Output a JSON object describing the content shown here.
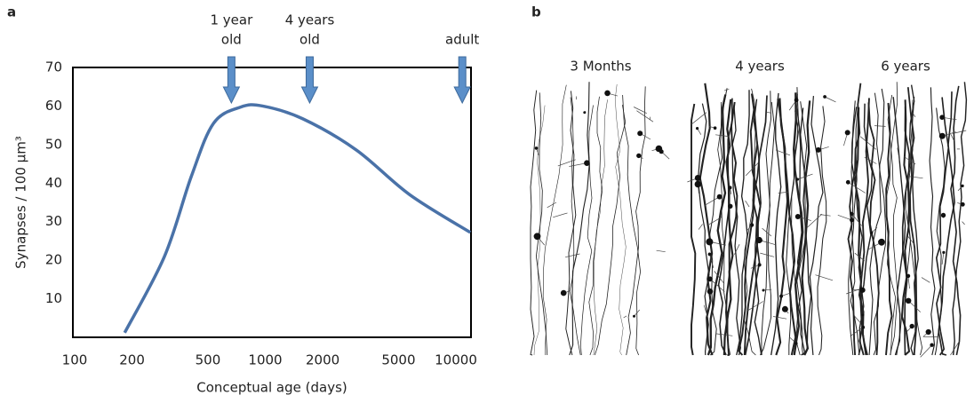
{
  "panel_labels": [
    "a",
    "b"
  ],
  "chart_data": {
    "type": "line",
    "xlabel": "Conceptual age (days)",
    "ylabel": "Synapses / 100 µm³",
    "x": [
      183,
      296,
      409,
      535,
      740,
      968,
      1570,
      3000,
      5720,
      11900
    ],
    "series": [
      {
        "color": "#4a72a8",
        "values": [
          1.2,
          21,
          41.7,
          55.5,
          59.7,
          60,
          56.7,
          48.6,
          37,
          27.2
        ]
      }
    ],
    "xscale": "log",
    "xlim": [
      100,
      12000
    ],
    "xticks": [
      100,
      200,
      500,
      1000,
      2000,
      5000,
      10000
    ],
    "ylim": [
      0,
      70
    ],
    "yticks": [
      10,
      20,
      30,
      40,
      50,
      60,
      70
    ],
    "grid": false,
    "annotations": [
      {
        "lines": [
          "1 year",
          "old"
        ],
        "x": 664
      },
      {
        "lines": [
          "4 years",
          "old"
        ],
        "x": 1710
      },
      {
        "lines": [
          "adult"
        ],
        "x": 10800
      }
    ],
    "arrow_color": "#5b8fc9"
  },
  "panel_b": {
    "titles": [
      "3 Months",
      "4 years",
      "6 years"
    ]
  }
}
